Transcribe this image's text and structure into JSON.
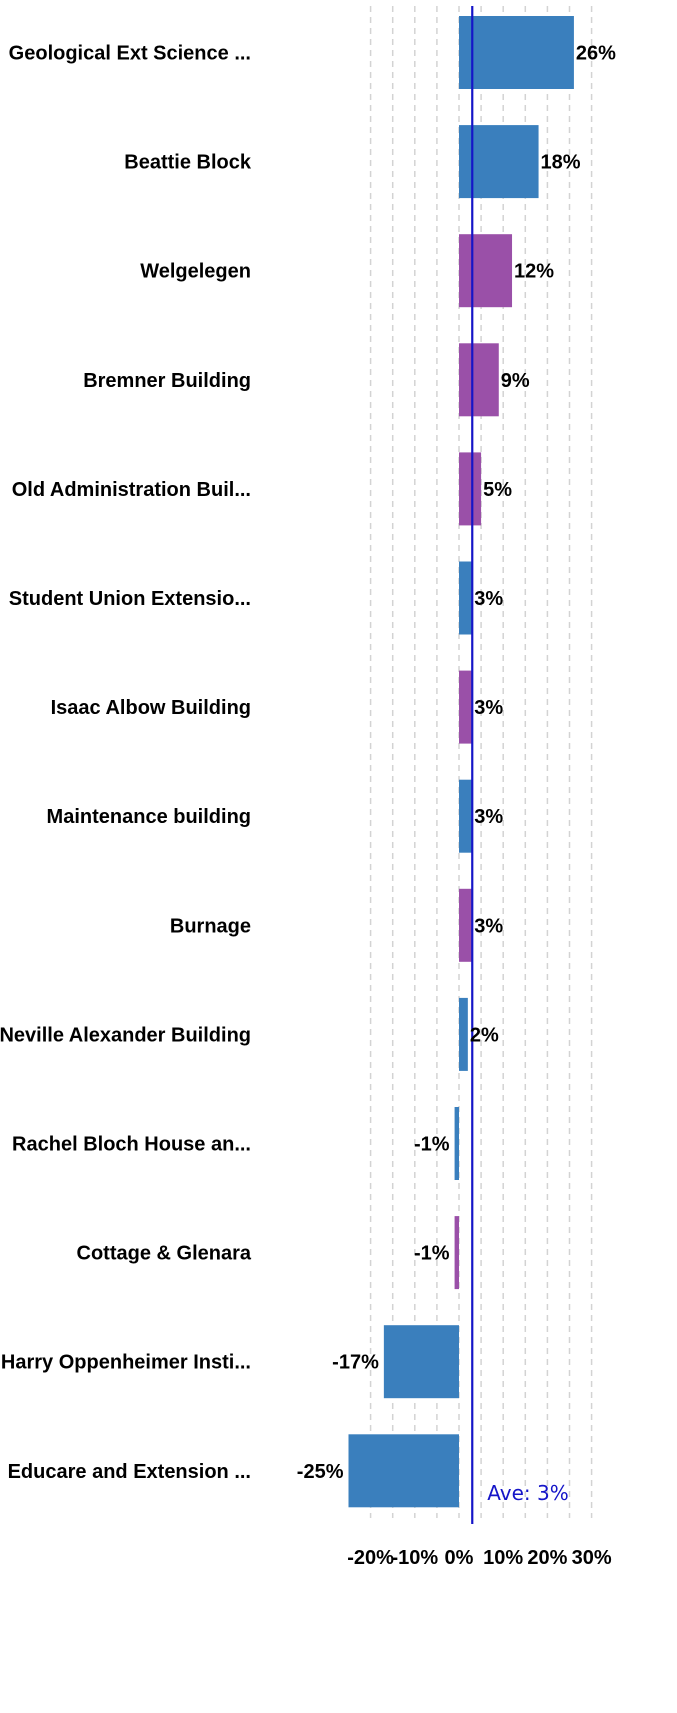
{
  "chart_data": {
    "type": "bar",
    "orientation": "horizontal",
    "categories": [
      "Geological Ext Science ...",
      "Beattie Block",
      "Welgelegen",
      "Bremner Building",
      "Old Administration Buil...",
      "Student Union Extensio...",
      "Isaac Albow Building",
      "Maintenance building",
      "Burnage",
      "Neville Alexander Building",
      "Rachel Bloch House an...",
      "Cottage & Glenara",
      "Harry Oppenheimer Insti...",
      "Educare and Extension ..."
    ],
    "values": [
      26,
      18,
      12,
      9,
      5,
      3,
      3,
      3,
      3,
      2,
      -1,
      -1,
      -17,
      -25
    ],
    "value_labels": [
      "26%",
      "18%",
      "12%",
      "9%",
      "5%",
      "3%",
      "3%",
      "3%",
      "3%",
      "2%",
      "-1%",
      "-1%",
      "-17%",
      "-25%"
    ],
    "bar_colors": [
      "#3a7fbd",
      "#3a7fbd",
      "#9a50a8",
      "#9a50a8",
      "#9a50a8",
      "#3a7fbd",
      "#9a50a8",
      "#3a7fbd",
      "#9a50a8",
      "#3a7fbd",
      "#3a7fbd",
      "#9a50a8",
      "#3a7fbd",
      "#3a7fbd"
    ],
    "xlim": [
      -30,
      30
    ],
    "x_ticks": [
      -20,
      -10,
      0,
      10,
      20,
      30
    ],
    "x_tick_labels": [
      "-20%",
      "-10%",
      "0%",
      "10%",
      "20%",
      "30%"
    ],
    "grid": "vertical dashed",
    "average": {
      "value": 3,
      "label": "Ave: 3%",
      "color": "#1515c8"
    },
    "title": "",
    "xlabel": "",
    "ylabel": ""
  }
}
